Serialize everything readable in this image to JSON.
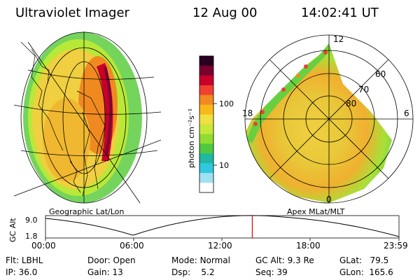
{
  "header": {
    "instrument": "Ultraviolet Imager",
    "date": "12 Aug 00",
    "time": "14:02:41 UT"
  },
  "colorbar": {
    "unit_label": "photon cm⁻²s⁻¹",
    "ticks": [
      "100",
      "10"
    ],
    "colors_top_to_bottom": [
      "#2a0020",
      "#7a0030",
      "#c8002a",
      "#f04030",
      "#f08a20",
      "#f8b818",
      "#f0e040",
      "#c8e838",
      "#90dc30",
      "#50c840",
      "#20b8a0",
      "#30c8e0",
      "#a0e0f0",
      "#ffffff"
    ]
  },
  "geo_panel": {
    "label": "Geographic Lat/Lon"
  },
  "polar_panel": {
    "label": "Apex MLat/MLT",
    "mlt_labels": {
      "top": "12",
      "left": "18",
      "right": "6",
      "bottom": "0"
    },
    "lat_labels": [
      "60",
      "70",
      "80"
    ]
  },
  "timeline": {
    "y_axis_label": "GC Alt",
    "y_ticks": [
      "9.0",
      "1.8"
    ],
    "x_ticks": [
      "00:00",
      "06:00",
      "12:00",
      "18:00",
      "23:59"
    ],
    "current_time_fraction": 0.585,
    "marker_color": "#e00000"
  },
  "status": {
    "row1": [
      {
        "key": "Flt:",
        "value": "LBHL"
      },
      {
        "key": "Door:",
        "value": "Open"
      },
      {
        "key": "Mode:",
        "value": "Normal"
      },
      {
        "key": "GC Alt:",
        "value": "9.3 Re"
      },
      {
        "key": "GLat:",
        "value": "79.5"
      }
    ],
    "row2": [
      {
        "key": "IP:",
        "value": "36.0"
      },
      {
        "key": "Gain:",
        "value": "13"
      },
      {
        "key": "Dsp:",
        "value": "5.2"
      },
      {
        "key": "Seq:",
        "value": "39"
      },
      {
        "key": "GLon:",
        "value": "165.6"
      }
    ]
  }
}
